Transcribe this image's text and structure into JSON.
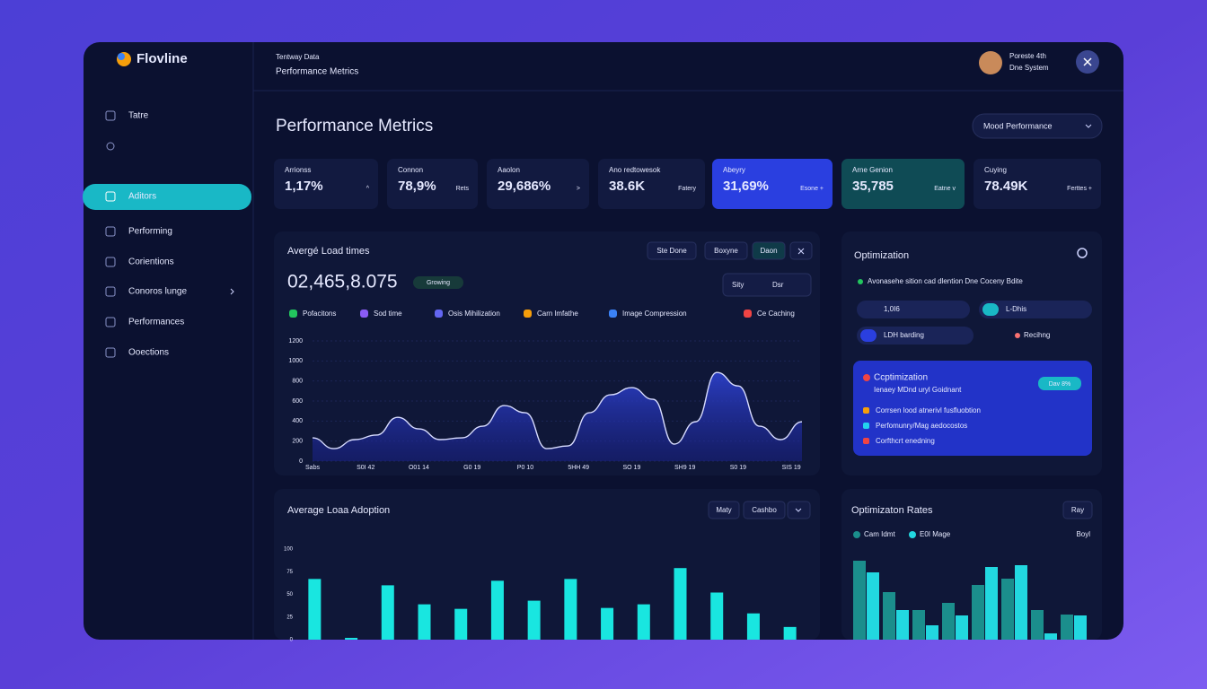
{
  "app": {
    "name": "Flovline"
  },
  "sidebar": {
    "items": [
      "Tatre",
      "Aditors",
      "Performing",
      "Corientions",
      "Conoros lunge",
      "Performances",
      "Ooections"
    ]
  },
  "header": {
    "breadcrumb": "Tentway Data",
    "section": "Performance Metrics",
    "user": {
      "name": "Poreste 4th",
      "role": "Dne System"
    }
  },
  "page": {
    "title": "Performance Metrics",
    "filter": "Mood Performance"
  },
  "kpis": [
    {
      "label": "Arrionss",
      "value": "1,17%",
      "note": "^"
    },
    {
      "label": "Connon",
      "value": "78,9%",
      "note": "Rets"
    },
    {
      "label": "Aaolon",
      "value": "29,686%",
      "note": ">"
    },
    {
      "label": "Ano redtowesok",
      "value": "38.6K",
      "note": "Fatery"
    },
    {
      "label": "Abeyry",
      "value": "31,69%",
      "note": "Esone +"
    },
    {
      "label": "Arne Genion",
      "value": "35,785",
      "note": "Eatne v"
    },
    {
      "label": "Cuying",
      "value": "78.49K",
      "note": "Ferttes +"
    }
  ],
  "load_panel": {
    "buttons": [
      "Ste Done",
      "Boxyne",
      "Daon"
    ],
    "headline": "02,465,8.075",
    "badge": "Growing",
    "range": [
      "Sity",
      "Dsr"
    ],
    "legend": [
      {
        "name": "Pofacitons",
        "color": "#22c55e"
      },
      {
        "name": "Sod time",
        "color": "#8b5cf6"
      },
      {
        "name": "Osis Mihilization",
        "color": "#6366f1"
      },
      {
        "name": "Carn lmfathe",
        "color": "#f59e0b"
      },
      {
        "name": "Image Compression",
        "color": "#3b82f6"
      },
      {
        "name": "Ce Caching",
        "color": "#ef4444"
      }
    ]
  },
  "adoption_panel": {
    "buttons": [
      "Maty",
      "Cashbo"
    ]
  },
  "optimization": {
    "title": "Optimization",
    "description": "Avonasehe sition cad dlention Dne Coceny Bdite",
    "pills": [
      "1,0I6",
      "L-Dhis",
      "LDH barding",
      "Recihng"
    ],
    "card": {
      "title": "Ccptimization",
      "subtitle": "Ienaey MDnd uryl Goidnant",
      "toggle": "Dav 8%",
      "items": [
        "Corrsen lood atnerivl fusfluobtion",
        "Perfomunry/Mag aedocostos",
        "Corfthcrt enedning"
      ]
    }
  },
  "rates_panel": {
    "button": "Ray",
    "extra": "Boyl"
  },
  "chart_data": [
    {
      "type": "line",
      "title": "Avergé Load times",
      "x": [
        0,
        1,
        2,
        3,
        4,
        5,
        6,
        7,
        8,
        9,
        10,
        11,
        12,
        13,
        14,
        15,
        16,
        17,
        18,
        19,
        20,
        21,
        22,
        23
      ],
      "series": [
        {
          "name": "Pofacitons",
          "color": "#d8dcff",
          "values": [
            232,
            125,
            215,
            260,
            437,
            322,
            215,
            232,
            349,
            555,
            483,
            125,
            152,
            483,
            662,
            734,
            617,
            170,
            393,
            885,
            751,
            349,
            215,
            393
          ]
        }
      ],
      "xlim": [
        0,
        23
      ],
      "xticks": [
        {
          "value": 0,
          "label": "Sabs"
        },
        {
          "value": 2.5,
          "label": "S0I 42"
        },
        {
          "value": 5,
          "label": "O01 14"
        },
        {
          "value": 7.5,
          "label": "G0 19"
        },
        {
          "value": 10,
          "label": "P0 10"
        },
        {
          "value": 12.5,
          "label": "5HH 49"
        },
        {
          "value": 15,
          "label": "SO 19"
        },
        {
          "value": 17.5,
          "label": "SH9 19"
        },
        {
          "value": 20,
          "label": "S0 19"
        },
        {
          "value": 22.5,
          "label": "SIS 19"
        }
      ],
      "ylim": [
        0,
        1200
      ],
      "yticks": [
        0,
        200,
        400,
        600,
        800,
        1000,
        1200
      ],
      "grid": true
    },
    {
      "type": "bar",
      "title": "Average Loaa Adoption",
      "categories": [
        null,
        null,
        null,
        null,
        null,
        null,
        null,
        null,
        null,
        null,
        null,
        null,
        null,
        null
      ],
      "values": [
        67,
        2,
        60,
        39,
        34,
        65,
        43,
        67,
        35,
        39,
        79,
        52,
        29,
        14
      ],
      "color": "#19e6e0",
      "ylim": [
        0,
        100
      ],
      "yticks": [
        0,
        25,
        50,
        75,
        100
      ]
    },
    {
      "type": "grouped_bar",
      "title": "Optimizaton Rates",
      "categories": [
        null,
        null,
        null,
        null,
        null,
        null,
        null,
        null
      ],
      "series": [
        {
          "name": "Cam Idmt",
          "color": "#1b8e8c",
          "values": [
            88,
            53,
            33,
            41,
            61,
            68,
            33,
            28
          ]
        },
        {
          "name": "E0I Mage",
          "color": "#22d8e0",
          "values": [
            75,
            33,
            16,
            27,
            81,
            83,
            7,
            27
          ]
        }
      ],
      "ylim": [
        0,
        100
      ]
    }
  ]
}
